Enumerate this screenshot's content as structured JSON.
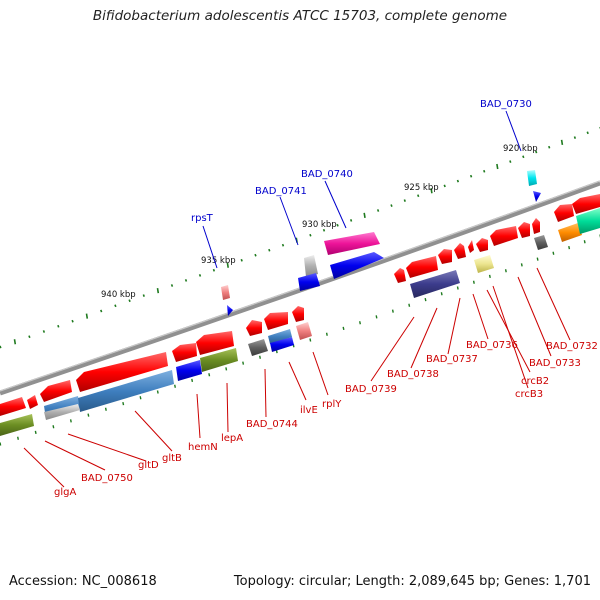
{
  "title": "Bifidobacterium adolescentis ATCC 15703, complete genome",
  "footer": {
    "accession": "Accession: NC_008618",
    "summary": "Topology: circular; Length: 2,089,645 bp; Genes: 1,701"
  },
  "colors": {
    "backbone": "#808080",
    "tick": "#1f7a1f",
    "label_blue": "#0000cc",
    "label_red": "#cc0000"
  },
  "scale_labels": [
    "940 kbp",
    "935 kbp",
    "930 kbp",
    "925 kbp",
    "920 kbp"
  ],
  "gene_labels": {
    "blue": [
      "rpsT",
      "BAD_0741",
      "BAD_0740",
      "BAD_0730"
    ],
    "red": [
      "glgA",
      "BAD_0750",
      "gltD",
      "gltB",
      "hemN",
      "lepA",
      "BAD_0744",
      "ilvE",
      "rplY",
      "BAD_0739",
      "BAD_0738",
      "BAD_0737",
      "BAD_0736",
      "crcB2",
      "crcB3",
      "BAD_0733",
      "BAD_0732"
    ]
  }
}
